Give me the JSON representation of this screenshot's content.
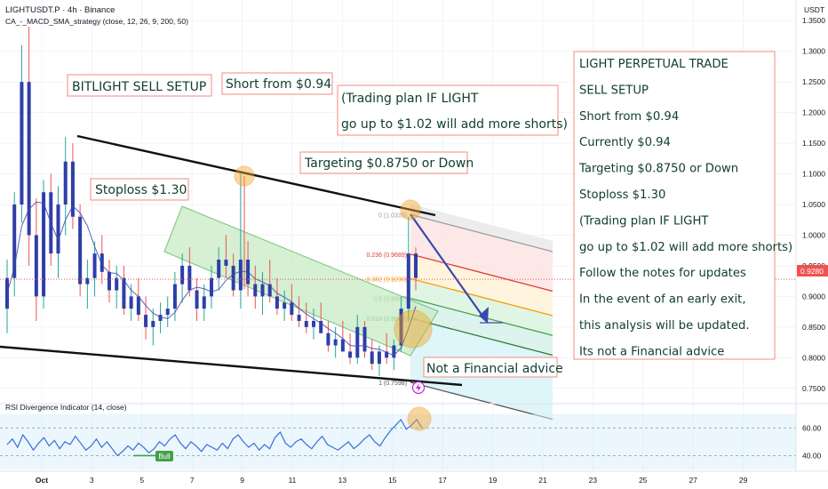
{
  "header": {
    "symbol_line": "LIGHTUSDT.P · 4h · Binance",
    "strategy_line": "CA_-_MACD_SMA_strategy (close, 12, 26, 9, 200, 50)",
    "currency": "USDT"
  },
  "chart_data": [
    {
      "type": "candlestick",
      "title": "LIGHTUSDT.P · 4h · Binance",
      "y_ticks": [
        "1.3500",
        "1.3000",
        "1.2500",
        "1.2000",
        "1.1500",
        "1.1000",
        "1.0500",
        "1.0000",
        "0.9500",
        "0.9000",
        "0.8500",
        "0.8000",
        "0.7500"
      ],
      "x_ticks": [
        "Oct",
        "3",
        "5",
        "7",
        "9",
        "11",
        "13",
        "15",
        "17",
        "19",
        "21",
        "23",
        "25",
        "27",
        "29"
      ],
      "current_price": "0.9280",
      "ylim": [
        0.725,
        1.375
      ],
      "candles": [
        [
          0.88,
          0.96,
          0.84,
          0.93
        ],
        [
          0.93,
          1.07,
          0.9,
          1.05
        ],
        [
          1.05,
          1.31,
          1.02,
          1.25
        ],
        [
          1.25,
          1.34,
          0.95,
          1.0
        ],
        [
          1.0,
          1.06,
          0.86,
          0.9
        ],
        [
          0.9,
          1.09,
          0.88,
          1.07
        ],
        [
          1.07,
          1.1,
          0.95,
          0.97
        ],
        [
          0.97,
          1.08,
          0.93,
          1.05
        ],
        [
          1.05,
          1.16,
          1.0,
          1.12
        ],
        [
          1.12,
          1.15,
          1.01,
          1.03
        ],
        [
          1.03,
          1.05,
          0.9,
          0.92
        ],
        [
          0.92,
          0.96,
          0.88,
          0.93
        ],
        [
          0.93,
          0.99,
          0.9,
          0.97
        ],
        [
          0.97,
          1.0,
          0.92,
          0.94
        ],
        [
          0.94,
          0.96,
          0.89,
          0.91
        ],
        [
          0.91,
          0.95,
          0.88,
          0.93
        ],
        [
          0.93,
          0.95,
          0.87,
          0.88
        ],
        [
          0.88,
          0.92,
          0.86,
          0.9
        ],
        [
          0.9,
          0.93,
          0.86,
          0.87
        ],
        [
          0.87,
          0.9,
          0.83,
          0.85
        ],
        [
          0.85,
          0.88,
          0.82,
          0.86
        ],
        [
          0.86,
          0.89,
          0.84,
          0.87
        ],
        [
          0.87,
          0.9,
          0.85,
          0.88
        ],
        [
          0.88,
          0.94,
          0.86,
          0.92
        ],
        [
          0.92,
          0.97,
          0.89,
          0.95
        ],
        [
          0.95,
          0.98,
          0.9,
          0.91
        ],
        [
          0.91,
          0.93,
          0.86,
          0.88
        ],
        [
          0.88,
          0.92,
          0.86,
          0.9
        ],
        [
          0.9,
          0.95,
          0.88,
          0.93
        ],
        [
          0.93,
          0.98,
          0.91,
          0.96
        ],
        [
          0.96,
          1.0,
          0.93,
          0.95
        ],
        [
          0.95,
          0.97,
          0.9,
          0.91
        ],
        [
          0.91,
          1.1,
          0.88,
          0.96
        ],
        [
          0.96,
          0.99,
          0.9,
          0.92
        ],
        [
          0.92,
          0.95,
          0.88,
          0.9
        ],
        [
          0.9,
          0.94,
          0.87,
          0.92
        ],
        [
          0.92,
          0.96,
          0.89,
          0.9
        ],
        [
          0.9,
          0.93,
          0.87,
          0.88
        ],
        [
          0.88,
          0.91,
          0.86,
          0.89
        ],
        [
          0.89,
          0.92,
          0.86,
          0.87
        ],
        [
          0.87,
          0.9,
          0.85,
          0.86
        ],
        [
          0.86,
          0.89,
          0.84,
          0.85
        ],
        [
          0.85,
          0.88,
          0.83,
          0.86
        ],
        [
          0.86,
          0.89,
          0.84,
          0.84
        ],
        [
          0.84,
          0.86,
          0.81,
          0.82
        ],
        [
          0.82,
          0.85,
          0.8,
          0.83
        ],
        [
          0.83,
          0.86,
          0.81,
          0.81
        ],
        [
          0.81,
          0.84,
          0.79,
          0.8
        ],
        [
          0.8,
          0.87,
          0.79,
          0.85
        ],
        [
          0.85,
          0.86,
          0.8,
          0.81
        ],
        [
          0.81,
          0.83,
          0.78,
          0.79
        ],
        [
          0.79,
          0.82,
          0.77,
          0.81
        ],
        [
          0.81,
          0.84,
          0.79,
          0.8
        ],
        [
          0.8,
          0.83,
          0.78,
          0.82
        ],
        [
          0.82,
          0.9,
          0.81,
          0.88
        ],
        [
          0.88,
          1.03,
          0.86,
          0.97
        ],
        [
          0.97,
          0.98,
          0.91,
          0.93
        ]
      ],
      "candle_colors": {
        "up": "#26a69a",
        "down": "#ef5350",
        "body_up": "#2f3ea8",
        "body_down": "#2f3ea8"
      },
      "fibonacci": [
        {
          "level": "0",
          "price": "1.0335",
          "color": "#9e9e9e"
        },
        {
          "level": "0.236",
          "price": "0.9689",
          "color": "#e53935"
        },
        {
          "level": "0.382",
          "price": "0.9290",
          "color": "#f59e0b"
        },
        {
          "level": "0.5",
          "price": "0.8967",
          "color": "#43a047"
        },
        {
          "level": "0.618",
          "price": "0.8644",
          "color": "#2e7d32"
        },
        {
          "level": "1",
          "price": "0.7598",
          "color": "#555555"
        }
      ],
      "annotations": {
        "setup_title": "BITLIGHT SELL SETUP",
        "short_from": "Short from $0.94",
        "plan_line1": "(Trading plan IF LIGHT",
        "plan_line2": "go up to $1.02 will add more shorts)",
        "targeting": "Targeting $0.8750 or Down",
        "stoploss": "Stoploss $1.30",
        "disclaimer": "Not a Financial advice"
      },
      "notes_box": [
        "LIGHT PERPETUAL TRADE",
        "SELL SETUP",
        "Short from $0.94",
        "Currently $0.94",
        "Targeting $0.8750 or Down",
        "Stoploss $1.30",
        "(Trading plan IF LIGHT",
        "go up to $1.02 will add more shorts)",
        "Follow the notes for updates",
        "In the event of an early exit,",
        "this analysis will be updated.",
        "Its not a Financial advice"
      ],
      "colors": {
        "accent_line": "#3949ab",
        "label_border": "#f28b82",
        "price_tag": "#ef5350",
        "highlight": "#f4a62a"
      }
    },
    {
      "type": "line",
      "title": "RSI Divergence Indicator (14, close)",
      "y_ticks": [
        "60.00",
        "40.00"
      ],
      "badge": "Bull",
      "values": [
        48,
        52,
        46,
        55,
        50,
        44,
        49,
        53,
        47,
        51,
        45,
        50,
        48,
        54,
        49,
        44,
        47,
        52,
        46,
        50,
        45,
        40,
        43,
        47,
        44,
        49,
        46,
        42,
        45,
        50,
        47,
        52,
        55,
        49,
        45,
        50,
        47,
        43,
        48,
        46,
        44,
        49,
        45,
        52,
        55,
        50,
        46,
        49,
        44,
        48,
        45,
        53,
        57,
        49,
        46,
        50,
        52,
        48,
        45,
        50,
        54,
        48,
        46,
        44,
        47,
        50,
        45,
        48,
        52,
        55,
        50,
        47,
        53,
        58,
        62,
        66,
        59,
        62,
        66,
        60
      ],
      "ylim": [
        30,
        75
      ]
    }
  ]
}
